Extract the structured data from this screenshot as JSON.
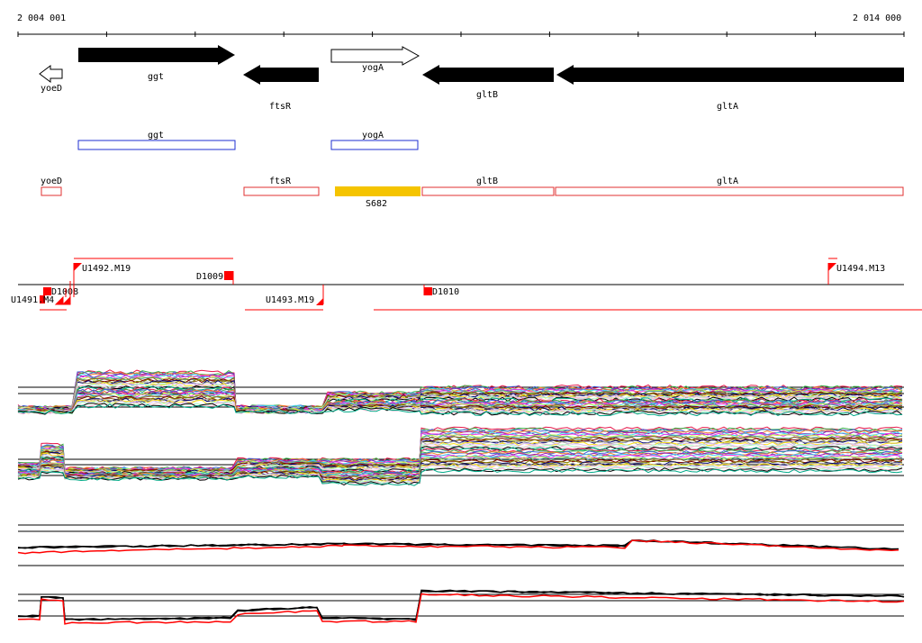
{
  "coordinates": {
    "start_label": "2 004 001",
    "end_label": "2 014 000"
  },
  "colors": {
    "gene_fill": "#000000",
    "gene_outline_blue": "#1f2fd0",
    "gene_outline_red": "#e03030",
    "feature_yellow": "#f5c400",
    "marker_red": "#ff0000"
  },
  "genes": [
    {
      "name": "yoeD",
      "strand": "-",
      "filled": false
    },
    {
      "name": "ggt",
      "strand": "+",
      "filled": true
    },
    {
      "name": "ftsR",
      "strand": "-",
      "filled": true
    },
    {
      "name": "yogA",
      "strand": "+",
      "filled": false
    },
    {
      "name": "gltB",
      "strand": "-",
      "filled": true
    },
    {
      "name": "gltA",
      "strand": "-",
      "filled": true
    }
  ],
  "blue_track": [
    {
      "name": "ggt"
    },
    {
      "name": "yogA"
    }
  ],
  "red_track": [
    {
      "name": "yoeD"
    },
    {
      "name": "ftsR"
    },
    {
      "name": "gltB"
    },
    {
      "name": "gltA"
    }
  ],
  "yellow_feature": {
    "name": "S682"
  },
  "markers": {
    "u1492": "U1492.M19",
    "d1009": "D1009",
    "u1494": "U1494.M13",
    "d1008": "D1008",
    "u1491": "U1491.M4",
    "u1493": "U1493.M19",
    "d1010": "D1010"
  }
}
